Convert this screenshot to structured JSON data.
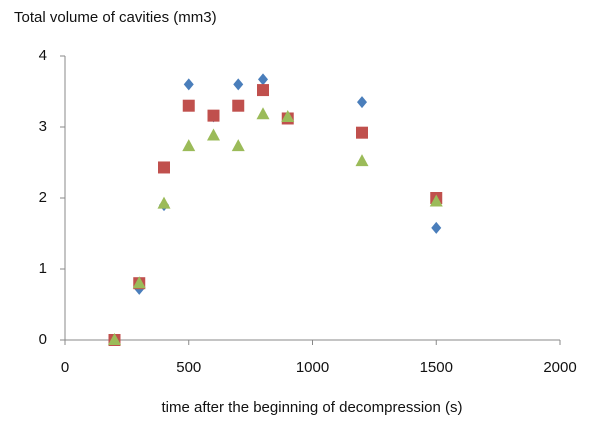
{
  "chart_data": {
    "type": "scatter",
    "title": "Total volume of cavities (mm3)",
    "x_label": "time after the beginning of decompression (s)",
    "x": [
      200,
      300,
      400,
      500,
      600,
      700,
      800,
      900,
      1200,
      1500
    ],
    "series": [
      {
        "color": "#4a7ebb",
        "marker": "diamond",
        "values": [
          0,
          0.72,
          1.9,
          3.6,
          3.15,
          3.6,
          3.67,
          3.12,
          3.35,
          1.58
        ]
      },
      {
        "color": "#c0504d",
        "marker": "square",
        "values": [
          0,
          0.8,
          2.43,
          3.3,
          3.16,
          3.3,
          3.52,
          3.12,
          2.92,
          2.0
        ]
      },
      {
        "color": "#9bbb59",
        "marker": "triangle",
        "values": [
          0,
          0.8,
          1.92,
          2.73,
          2.88,
          2.73,
          3.18,
          3.14,
          2.52,
          1.95
        ]
      }
    ],
    "xlim": [
      0,
      2000
    ],
    "xticks": [
      0,
      500,
      1000,
      1500,
      2000
    ],
    "ylim": [
      0,
      4
    ],
    "yticks": [
      0,
      1,
      2,
      3,
      4
    ],
    "grid": false
  }
}
